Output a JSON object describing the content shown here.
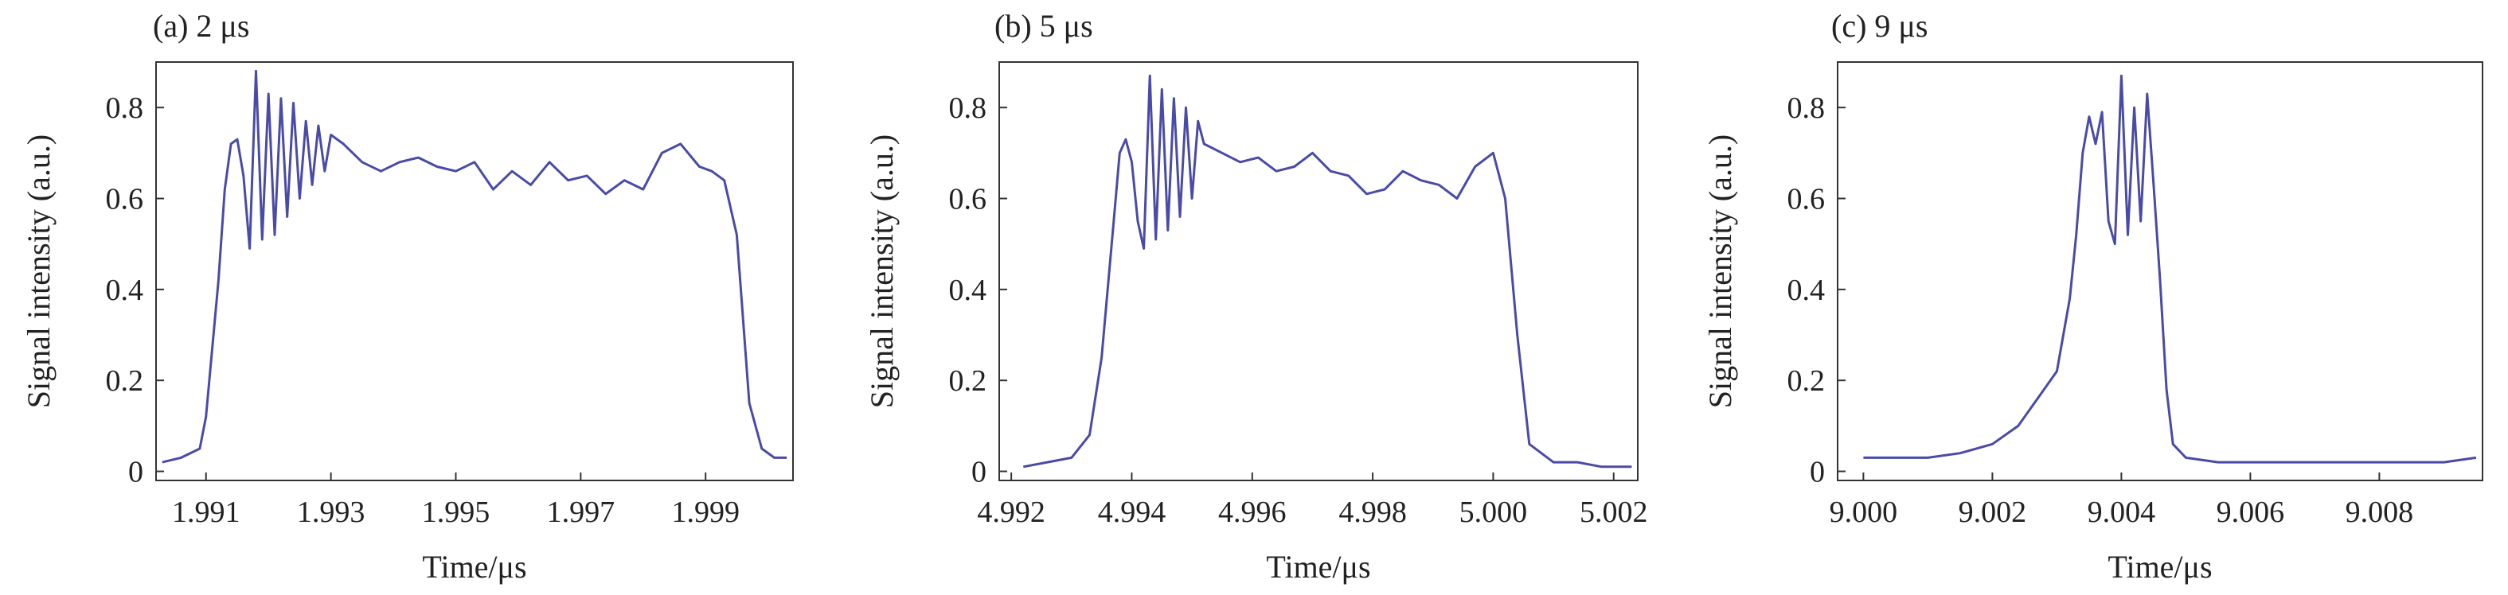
{
  "figure": {
    "line_color": "#4a4aa8",
    "axis_color": "#333333"
  },
  "chart_data": [
    {
      "type": "line",
      "title": "(a) 2 μs",
      "xlabel": "Time/μs",
      "ylabel": "Signal intensity (a.u.)",
      "xlim": [
        1.9902,
        2.0004
      ],
      "ylim": [
        -0.02,
        0.9
      ],
      "xticks": [
        1.991,
        1.993,
        1.995,
        1.997,
        1.999
      ],
      "xtick_labels": [
        "1.991",
        "1.993",
        "1.995",
        "1.997",
        "1.999"
      ],
      "yticks": [
        0,
        0.2,
        0.4,
        0.6,
        0.8
      ],
      "ytick_labels": [
        "0",
        "0.2",
        "0.4",
        "0.6",
        "0.8"
      ],
      "grid": false,
      "series": [
        {
          "x": [
            1.9903,
            1.9906,
            1.9909,
            1.991,
            1.9912,
            1.9913,
            1.9914,
            1.9915,
            1.9916,
            1.9917,
            1.9918,
            1.9919,
            1.992,
            1.9921,
            1.9922,
            1.9923,
            1.9924,
            1.9925,
            1.9926,
            1.9927,
            1.9928,
            1.9929,
            1.993,
            1.9932,
            1.9935,
            1.9938,
            1.9941,
            1.9944,
            1.9947,
            1.995,
            1.9953,
            1.9956,
            1.9959,
            1.9962,
            1.9965,
            1.9968,
            1.9971,
            1.9974,
            1.9977,
            1.998,
            1.9983,
            1.9986,
            1.9989,
            1.9991,
            1.9993,
            1.9995,
            1.9997,
            1.9999,
            2.0001,
            2.0003
          ],
          "y": [
            0.02,
            0.03,
            0.05,
            0.12,
            0.42,
            0.62,
            0.72,
            0.73,
            0.65,
            0.49,
            0.88,
            0.51,
            0.83,
            0.52,
            0.82,
            0.56,
            0.81,
            0.6,
            0.77,
            0.63,
            0.76,
            0.66,
            0.74,
            0.72,
            0.68,
            0.66,
            0.68,
            0.69,
            0.67,
            0.66,
            0.68,
            0.62,
            0.66,
            0.63,
            0.68,
            0.64,
            0.65,
            0.61,
            0.64,
            0.62,
            0.7,
            0.72,
            0.67,
            0.66,
            0.64,
            0.52,
            0.15,
            0.05,
            0.03,
            0.03
          ]
        }
      ]
    },
    {
      "type": "line",
      "title": "(b) 5 μs",
      "xlabel": "Time/μs",
      "ylabel": "Signal intensity (a.u.)",
      "xlim": [
        4.9918,
        5.0024
      ],
      "ylim": [
        -0.02,
        0.9
      ],
      "xticks": [
        4.992,
        4.994,
        4.996,
        4.998,
        5.0,
        5.002
      ],
      "xtick_labels": [
        "4.992",
        "4.994",
        "4.996",
        "4.998",
        "5.000",
        "5.002"
      ],
      "yticks": [
        0,
        0.2,
        0.4,
        0.6,
        0.8
      ],
      "ytick_labels": [
        "0",
        "0.2",
        "0.4",
        "0.6",
        "0.8"
      ],
      "grid": false,
      "series": [
        {
          "x": [
            4.9922,
            4.9926,
            4.993,
            4.9933,
            4.9935,
            4.9937,
            4.9938,
            4.9939,
            4.994,
            4.9941,
            4.9942,
            4.9943,
            4.9944,
            4.9945,
            4.9946,
            4.9947,
            4.9948,
            4.9949,
            4.995,
            4.9951,
            4.9952,
            4.9955,
            4.9958,
            4.9961,
            4.9964,
            4.9967,
            4.997,
            4.9973,
            4.9976,
            4.9979,
            4.9982,
            4.9985,
            4.9988,
            4.9991,
            4.9994,
            4.9997,
            5.0,
            5.0002,
            5.0004,
            5.0006,
            5.001,
            5.0014,
            5.0018,
            5.0023
          ],
          "y": [
            0.01,
            0.02,
            0.03,
            0.08,
            0.25,
            0.55,
            0.7,
            0.73,
            0.68,
            0.55,
            0.49,
            0.87,
            0.51,
            0.84,
            0.53,
            0.82,
            0.56,
            0.8,
            0.6,
            0.77,
            0.72,
            0.7,
            0.68,
            0.69,
            0.66,
            0.67,
            0.7,
            0.66,
            0.65,
            0.61,
            0.62,
            0.66,
            0.64,
            0.63,
            0.6,
            0.67,
            0.7,
            0.6,
            0.3,
            0.06,
            0.02,
            0.02,
            0.01,
            0.01
          ]
        }
      ]
    },
    {
      "type": "line",
      "title": "(c) 9 μs",
      "xlabel": "Time/μs",
      "ylabel": "Signal intensity (a.u.)",
      "xlim": [
        8.9996,
        9.0096
      ],
      "ylim": [
        -0.02,
        0.9
      ],
      "xticks": [
        9.0,
        9.002,
        9.004,
        9.006,
        9.008
      ],
      "xtick_labels": [
        "9.000",
        "9.002",
        "9.004",
        "9.006",
        "9.008"
      ],
      "yticks": [
        0,
        0.2,
        0.4,
        0.6,
        0.8
      ],
      "ytick_labels": [
        "0",
        "0.2",
        "0.4",
        "0.6",
        "0.8"
      ],
      "grid": false,
      "series": [
        {
          "x": [
            9.0,
            9.0005,
            9.001,
            9.0015,
            9.002,
            9.0024,
            9.0027,
            9.003,
            9.0031,
            9.0032,
            9.0033,
            9.0034,
            9.0035,
            9.0036,
            9.0037,
            9.0038,
            9.0039,
            9.004,
            9.0041,
            9.0042,
            9.0043,
            9.0044,
            9.0045,
            9.0046,
            9.0047,
            9.0048,
            9.005,
            9.0055,
            9.006,
            9.0065,
            9.007,
            9.0075,
            9.008,
            9.0085,
            9.009,
            9.0095
          ],
          "y": [
            0.03,
            0.03,
            0.03,
            0.04,
            0.06,
            0.1,
            0.16,
            0.22,
            0.3,
            0.38,
            0.52,
            0.7,
            0.78,
            0.72,
            0.79,
            0.55,
            0.5,
            0.87,
            0.52,
            0.8,
            0.55,
            0.83,
            0.63,
            0.42,
            0.18,
            0.06,
            0.03,
            0.02,
            0.02,
            0.02,
            0.02,
            0.02,
            0.02,
            0.02,
            0.02,
            0.03
          ]
        }
      ]
    }
  ]
}
